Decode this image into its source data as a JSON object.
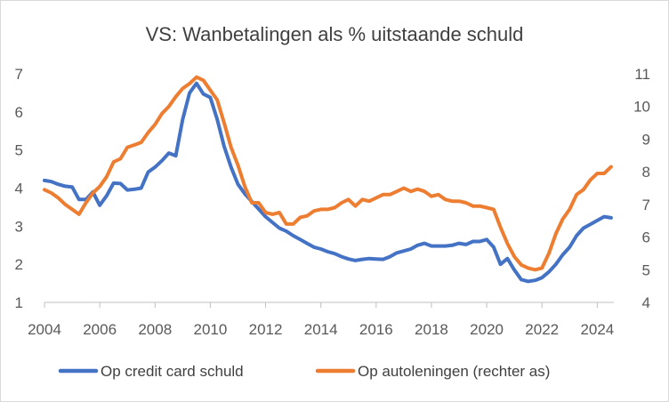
{
  "chart_data": {
    "type": "line",
    "title": "VS: Wanbetalingen als % uitstaande schuld",
    "xlabel": "",
    "ylabel": "",
    "xlim": [
      2004,
      2024.6
    ],
    "x_ticks": [
      2004,
      2006,
      2008,
      2010,
      2012,
      2014,
      2016,
      2018,
      2020,
      2022,
      2024
    ],
    "y_left": {
      "lim": [
        1,
        7
      ],
      "ticks": [
        1,
        2,
        3,
        4,
        5,
        6,
        7
      ]
    },
    "y_right": {
      "lim": [
        4,
        11
      ],
      "ticks": [
        4,
        5,
        6,
        7,
        8,
        9,
        10,
        11
      ]
    },
    "grid": false,
    "legend_position": "bottom",
    "series": [
      {
        "name": "Op credit card schuld",
        "axis": "left",
        "color": "#4472C4",
        "points": [
          [
            2004.0,
            4.2
          ],
          [
            2004.25,
            4.17
          ],
          [
            2004.5,
            4.1
          ],
          [
            2004.75,
            4.05
          ],
          [
            2005.0,
            4.03
          ],
          [
            2005.25,
            3.7
          ],
          [
            2005.5,
            3.7
          ],
          [
            2005.75,
            3.9
          ],
          [
            2006.0,
            3.55
          ],
          [
            2006.25,
            3.8
          ],
          [
            2006.5,
            4.13
          ],
          [
            2006.75,
            4.12
          ],
          [
            2007.0,
            3.95
          ],
          [
            2007.25,
            3.97
          ],
          [
            2007.5,
            4.0
          ],
          [
            2007.75,
            4.42
          ],
          [
            2008.0,
            4.55
          ],
          [
            2008.25,
            4.72
          ],
          [
            2008.5,
            4.92
          ],
          [
            2008.75,
            4.85
          ],
          [
            2009.0,
            5.8
          ],
          [
            2009.25,
            6.5
          ],
          [
            2009.5,
            6.75
          ],
          [
            2009.75,
            6.47
          ],
          [
            2010.0,
            6.38
          ],
          [
            2010.25,
            5.8
          ],
          [
            2010.5,
            5.1
          ],
          [
            2010.75,
            4.55
          ],
          [
            2011.0,
            4.1
          ],
          [
            2011.25,
            3.85
          ],
          [
            2011.5,
            3.65
          ],
          [
            2011.75,
            3.45
          ],
          [
            2012.0,
            3.25
          ],
          [
            2012.25,
            3.1
          ],
          [
            2012.5,
            2.95
          ],
          [
            2012.75,
            2.87
          ],
          [
            2013.0,
            2.75
          ],
          [
            2013.25,
            2.65
          ],
          [
            2013.5,
            2.55
          ],
          [
            2013.75,
            2.45
          ],
          [
            2014.0,
            2.4
          ],
          [
            2014.25,
            2.33
          ],
          [
            2014.5,
            2.28
          ],
          [
            2014.75,
            2.2
          ],
          [
            2015.0,
            2.14
          ],
          [
            2015.25,
            2.1
          ],
          [
            2015.5,
            2.13
          ],
          [
            2015.75,
            2.15
          ],
          [
            2016.0,
            2.14
          ],
          [
            2016.25,
            2.13
          ],
          [
            2016.5,
            2.2
          ],
          [
            2016.75,
            2.3
          ],
          [
            2017.0,
            2.35
          ],
          [
            2017.25,
            2.4
          ],
          [
            2017.5,
            2.5
          ],
          [
            2017.75,
            2.55
          ],
          [
            2018.0,
            2.48
          ],
          [
            2018.25,
            2.48
          ],
          [
            2018.5,
            2.48
          ],
          [
            2018.75,
            2.5
          ],
          [
            2019.0,
            2.55
          ],
          [
            2019.25,
            2.52
          ],
          [
            2019.5,
            2.6
          ],
          [
            2019.75,
            2.6
          ],
          [
            2020.0,
            2.65
          ],
          [
            2020.25,
            2.45
          ],
          [
            2020.5,
            2.0
          ],
          [
            2020.75,
            2.15
          ],
          [
            2021.0,
            1.85
          ],
          [
            2021.25,
            1.6
          ],
          [
            2021.5,
            1.55
          ],
          [
            2021.75,
            1.58
          ],
          [
            2022.0,
            1.65
          ],
          [
            2022.25,
            1.8
          ],
          [
            2022.5,
            2.0
          ],
          [
            2022.75,
            2.25
          ],
          [
            2023.0,
            2.45
          ],
          [
            2023.25,
            2.75
          ],
          [
            2023.5,
            2.95
          ],
          [
            2023.75,
            3.05
          ],
          [
            2024.0,
            3.15
          ],
          [
            2024.25,
            3.25
          ],
          [
            2024.5,
            3.22
          ]
        ]
      },
      {
        "name": "Op autoleningen (rechter as)",
        "axis": "right",
        "color": "#ED7D31",
        "points": [
          [
            2004.0,
            7.45
          ],
          [
            2004.25,
            7.35
          ],
          [
            2004.5,
            7.2
          ],
          [
            2004.75,
            7.0
          ],
          [
            2005.0,
            6.85
          ],
          [
            2005.25,
            6.7
          ],
          [
            2005.5,
            7.05
          ],
          [
            2005.75,
            7.35
          ],
          [
            2006.0,
            7.55
          ],
          [
            2006.25,
            7.85
          ],
          [
            2006.5,
            8.3
          ],
          [
            2006.75,
            8.4
          ],
          [
            2007.0,
            8.75
          ],
          [
            2007.25,
            8.82
          ],
          [
            2007.5,
            8.9
          ],
          [
            2007.75,
            9.2
          ],
          [
            2008.0,
            9.45
          ],
          [
            2008.25,
            9.78
          ],
          [
            2008.5,
            10.0
          ],
          [
            2008.75,
            10.3
          ],
          [
            2009.0,
            10.55
          ],
          [
            2009.25,
            10.7
          ],
          [
            2009.5,
            10.9
          ],
          [
            2009.75,
            10.8
          ],
          [
            2010.0,
            10.5
          ],
          [
            2010.25,
            10.2
          ],
          [
            2010.5,
            9.5
          ],
          [
            2010.75,
            8.75
          ],
          [
            2011.0,
            8.2
          ],
          [
            2011.25,
            7.55
          ],
          [
            2011.5,
            7.05
          ],
          [
            2011.75,
            7.05
          ],
          [
            2012.0,
            6.75
          ],
          [
            2012.25,
            6.7
          ],
          [
            2012.5,
            6.75
          ],
          [
            2012.75,
            6.4
          ],
          [
            2013.0,
            6.4
          ],
          [
            2013.25,
            6.6
          ],
          [
            2013.5,
            6.65
          ],
          [
            2013.75,
            6.8
          ],
          [
            2014.0,
            6.85
          ],
          [
            2014.25,
            6.85
          ],
          [
            2014.5,
            6.9
          ],
          [
            2014.75,
            7.05
          ],
          [
            2015.0,
            7.15
          ],
          [
            2015.25,
            6.95
          ],
          [
            2015.5,
            7.15
          ],
          [
            2015.75,
            7.1
          ],
          [
            2016.0,
            7.2
          ],
          [
            2016.25,
            7.3
          ],
          [
            2016.5,
            7.3
          ],
          [
            2016.75,
            7.4
          ],
          [
            2017.0,
            7.5
          ],
          [
            2017.25,
            7.4
          ],
          [
            2017.5,
            7.47
          ],
          [
            2017.75,
            7.4
          ],
          [
            2018.0,
            7.25
          ],
          [
            2018.25,
            7.3
          ],
          [
            2018.5,
            7.15
          ],
          [
            2018.75,
            7.1
          ],
          [
            2019.0,
            7.1
          ],
          [
            2019.25,
            7.05
          ],
          [
            2019.5,
            6.95
          ],
          [
            2019.75,
            6.95
          ],
          [
            2020.0,
            6.9
          ],
          [
            2020.25,
            6.85
          ],
          [
            2020.5,
            6.3
          ],
          [
            2020.75,
            5.8
          ],
          [
            2021.0,
            5.4
          ],
          [
            2021.25,
            5.15
          ],
          [
            2021.5,
            5.05
          ],
          [
            2021.75,
            5.0
          ],
          [
            2022.0,
            5.05
          ],
          [
            2022.25,
            5.5
          ],
          [
            2022.5,
            6.1
          ],
          [
            2022.75,
            6.55
          ],
          [
            2023.0,
            6.85
          ],
          [
            2023.25,
            7.3
          ],
          [
            2023.5,
            7.45
          ],
          [
            2023.75,
            7.75
          ],
          [
            2024.0,
            7.95
          ],
          [
            2024.25,
            7.95
          ],
          [
            2024.5,
            8.15
          ]
        ]
      }
    ]
  }
}
